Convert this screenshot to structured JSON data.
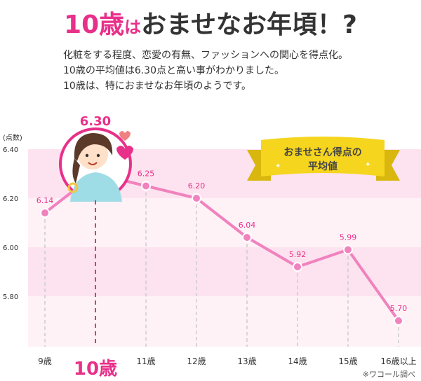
{
  "headline": {
    "number": "10歳",
    "particle": "は",
    "rest": "おませなお年頃！?"
  },
  "description": [
    "化粧をする程度、恋愛の有無、ファッションへの関心を得点化。",
    "10歳の平均値は6.30点と高い事がわかりました。",
    "10歳は、特におませなお年頃のようです。"
  ],
  "ribbon": {
    "line1": "おませさん得点の",
    "line2": "平均値"
  },
  "highlight": {
    "label": "6.30",
    "category": "10歳"
  },
  "source": "※ワコール調べ",
  "colors": {
    "accent": "#e8308a",
    "line": "#f082be",
    "band_dark": "#fde3ef",
    "band_light": "#fff2f7",
    "ribbon": "#f5d51e"
  },
  "chart_data": {
    "type": "line",
    "title": "",
    "ylabel": "(点数)",
    "xlabel": "",
    "ylim": [
      5.6,
      6.4
    ],
    "yticks": [
      "6.40",
      "6.20",
      "6.00",
      "5.80"
    ],
    "categories": [
      "9歳",
      "10歳",
      "11歳",
      "12歳",
      "13歳",
      "14歳",
      "15歳",
      "16歳以上"
    ],
    "values": [
      6.14,
      6.3,
      6.25,
      6.2,
      6.04,
      5.92,
      5.99,
      5.7
    ],
    "labels": [
      "6.14",
      "6.30",
      "6.25",
      "6.20",
      "6.04",
      "5.92",
      "5.99",
      "5.70"
    ],
    "grid": false
  }
}
